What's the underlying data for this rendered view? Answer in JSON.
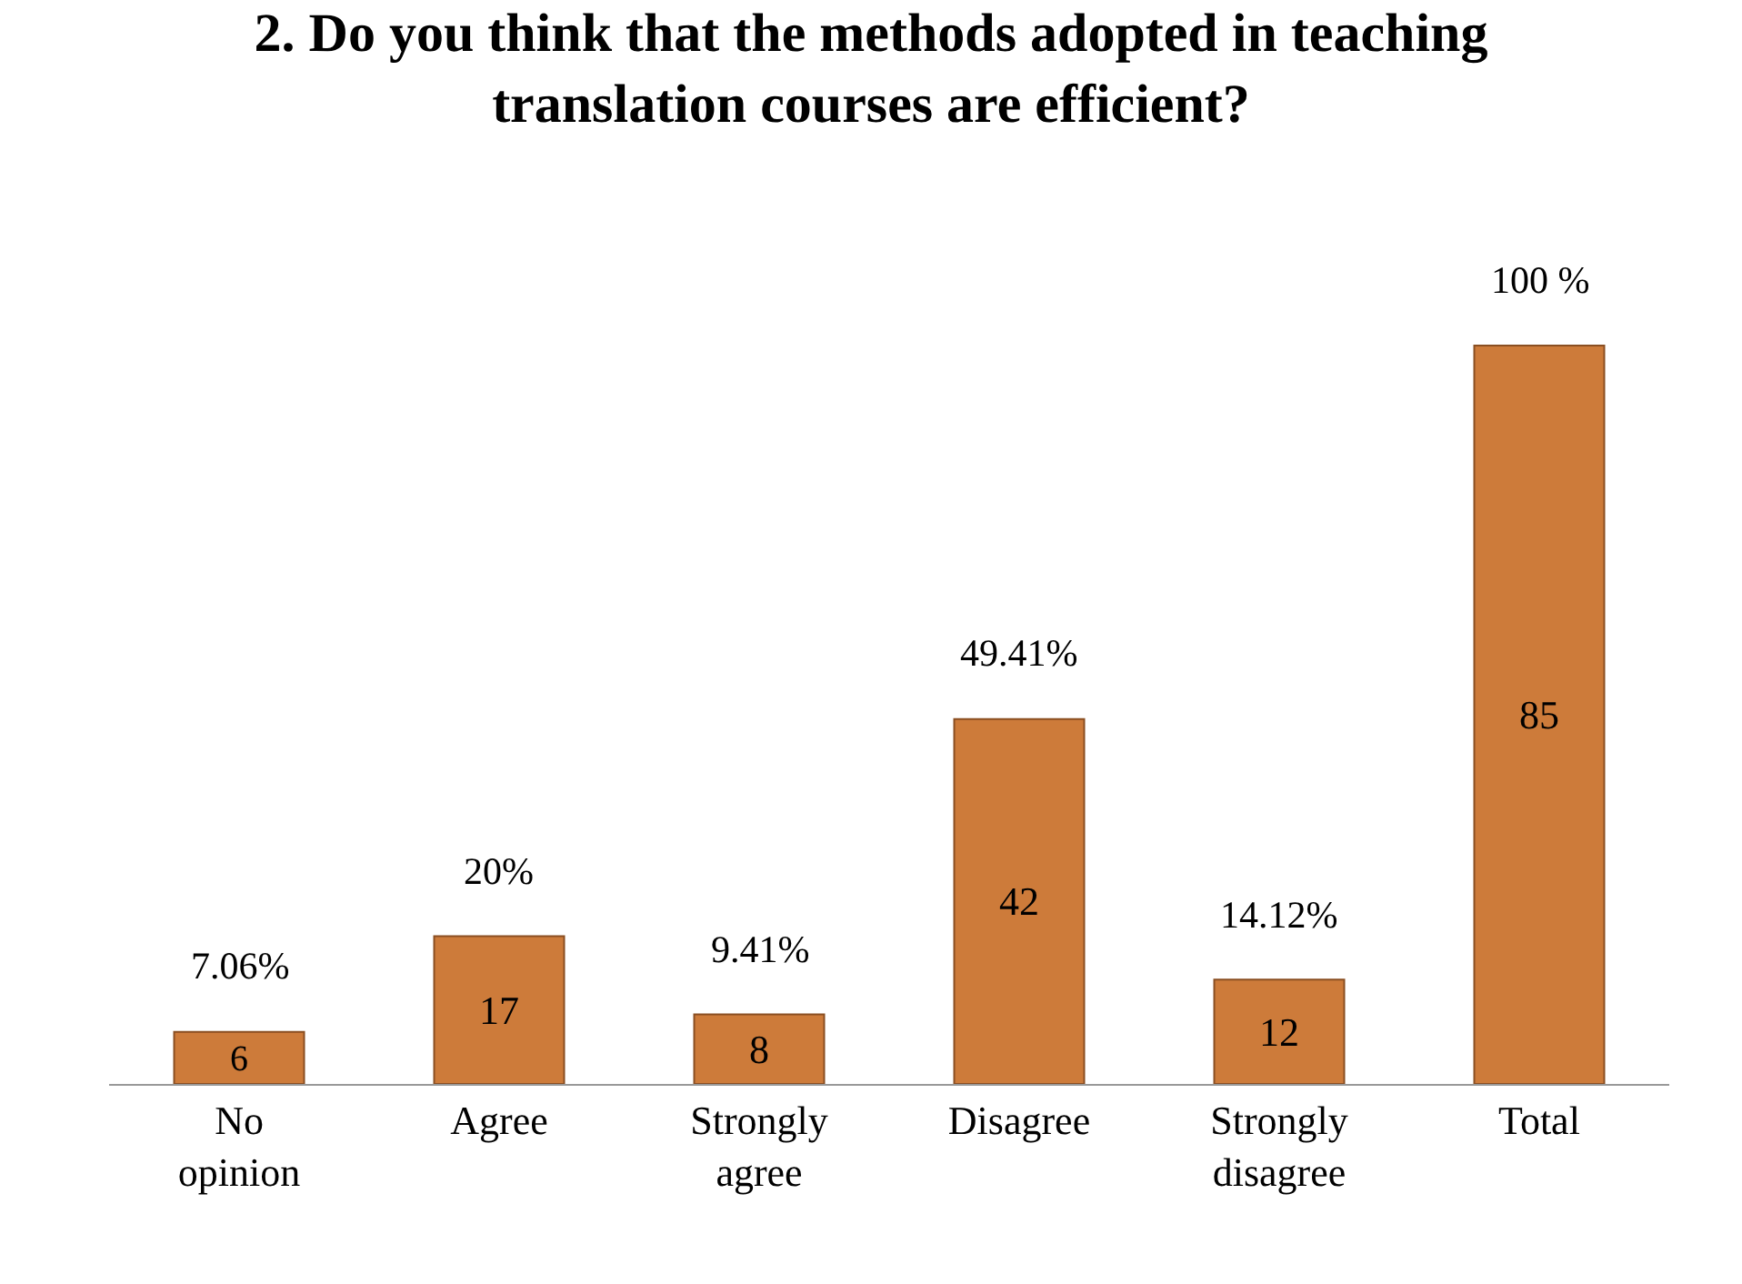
{
  "chart_data": {
    "type": "bar",
    "title": "2. Do you think that the methods adopted in teaching translation courses are efficient?",
    "categories": [
      "No opinion",
      "Agree",
      "Strongly agree",
      "Disagree",
      "Strongly disagree",
      "Total"
    ],
    "values": [
      6,
      17,
      8,
      42,
      12,
      85
    ],
    "color": "#cd7b3a",
    "data_labels": true,
    "grid": false,
    "annotations": [
      {
        "text": "7.06%",
        "x": "No opinion",
        "y": 6
      },
      {
        "text": "20%",
        "x": "Agree",
        "y": 17
      },
      {
        "text": "9.41%",
        "x": "Strongly agree",
        "y": 8
      },
      {
        "text": "49.41%",
        "x": "Disagree",
        "y": 42
      },
      {
        "text": "14.12%",
        "x": "Strongly disagree",
        "y": 12
      },
      {
        "text": "100 %",
        "x": "Total",
        "y": 85
      }
    ]
  }
}
